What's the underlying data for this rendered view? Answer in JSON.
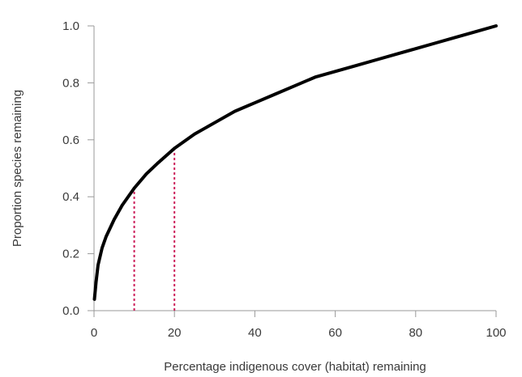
{
  "chart_data": {
    "type": "line",
    "title": "",
    "xlabel": "Percentage indigenous cover (habitat) remaining",
    "ylabel": "Proportion species remaining",
    "xlim": [
      0,
      100
    ],
    "ylim": [
      0,
      1.0
    ],
    "x_ticks": [
      "0",
      "20",
      "40",
      "60",
      "80",
      "100"
    ],
    "y_ticks": [
      "0.0",
      "0.2",
      "0.4",
      "0.6",
      "0.8",
      "1.0"
    ],
    "grid": false,
    "series": [
      {
        "x": [
          0.1,
          0.5,
          1,
          2,
          3,
          5,
          7,
          10,
          13,
          16,
          20,
          25,
          30,
          35,
          40,
          45,
          50,
          55,
          60,
          65,
          70,
          75,
          80,
          85,
          90,
          95,
          100
        ],
        "y": [
          0.04,
          0.1,
          0.16,
          0.22,
          0.26,
          0.32,
          0.37,
          0.43,
          0.48,
          0.52,
          0.57,
          0.62,
          0.66,
          0.7,
          0.73,
          0.76,
          0.79,
          0.82,
          0.84,
          0.86,
          0.88,
          0.9,
          0.92,
          0.94,
          0.96,
          0.98,
          1.0
        ],
        "color": "#000000"
      }
    ],
    "reference_lines": [
      {
        "x": 10,
        "y": 0.43,
        "color": "#cc1f5a"
      },
      {
        "x": 20,
        "y": 0.57,
        "color": "#cc1f5a"
      }
    ]
  }
}
